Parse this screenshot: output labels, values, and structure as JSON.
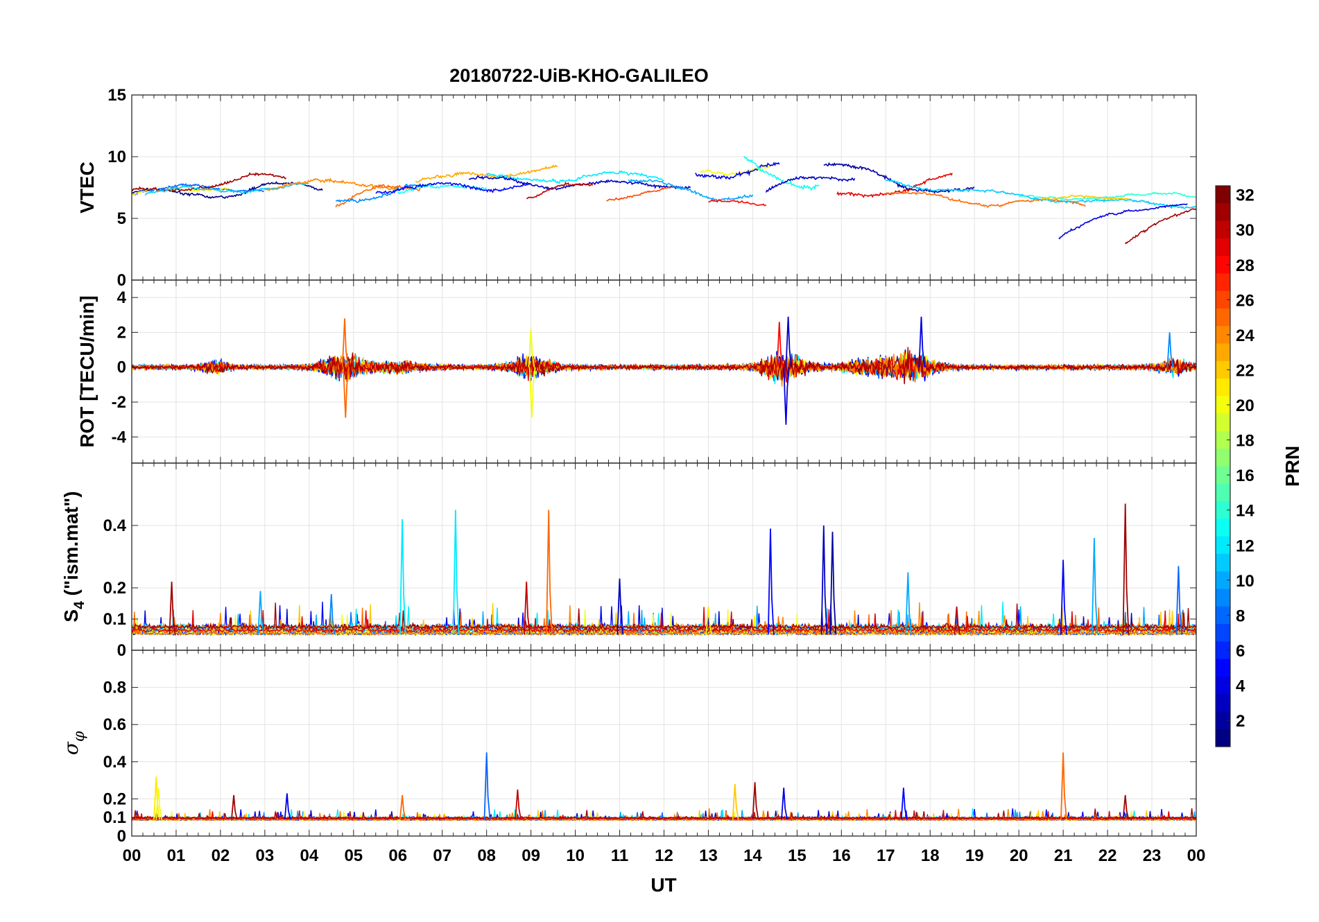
{
  "chart_data": {
    "type": "line",
    "title": "20180722-UiB-KHO-GALILEO",
    "xlabel": "UT",
    "xlim": [
      0,
      24
    ],
    "x_tick_labels": [
      "00",
      "01",
      "02",
      "03",
      "04",
      "05",
      "06",
      "07",
      "08",
      "09",
      "10",
      "11",
      "12",
      "13",
      "14",
      "15",
      "16",
      "17",
      "18",
      "19",
      "20",
      "21",
      "22",
      "23",
      "00"
    ],
    "grid": true,
    "colormap": "jet",
    "colorbar": {
      "label": "PRN",
      "range": [
        1,
        32
      ],
      "ticks": [
        2,
        4,
        6,
        8,
        10,
        12,
        14,
        16,
        18,
        20,
        22,
        24,
        26,
        28,
        30,
        32
      ],
      "placement": "right"
    },
    "panels": [
      {
        "id": "vtec",
        "ylabel": "VTEC",
        "ylim": [
          0,
          15
        ],
        "yticks": [
          0,
          5,
          10,
          15
        ],
        "ytick_labels": [
          "0",
          "5",
          "10",
          "15"
        ],
        "tracks": [
          {
            "prn": 1,
            "t0": 0.0,
            "t1": 4.3,
            "base": 6.8,
            "amp": 0.8,
            "noise": 0.25,
            "trend": 0.6
          },
          {
            "prn": 8,
            "t0": 0.0,
            "t1": 3.0,
            "base": 7.2,
            "amp": 0.5,
            "noise": 0.2,
            "trend": 0.3
          },
          {
            "prn": 21,
            "t0": 0.0,
            "t1": 2.2,
            "base": 6.7,
            "amp": 0.4,
            "noise": 0.15,
            "trend": 0.8
          },
          {
            "prn": 31,
            "t0": 0.0,
            "t1": 3.5,
            "base": 7.0,
            "amp": 0.6,
            "noise": 0.25,
            "trend": 1.2
          },
          {
            "prn": 11,
            "t0": 0.3,
            "t1": 4.0,
            "base": 7.0,
            "amp": 0.5,
            "noise": 0.2,
            "trend": 0.6
          },
          {
            "prn": 24,
            "t0": 3.0,
            "t1": 6.0,
            "base": 7.6,
            "amp": 0.6,
            "noise": 0.3,
            "trend": 0.2
          },
          {
            "prn": 25,
            "t0": 4.6,
            "t1": 6.5,
            "base": 6.2,
            "amp": 0.8,
            "noise": 0.3,
            "trend": 1.2
          },
          {
            "prn": 9,
            "t0": 4.6,
            "t1": 6.6,
            "base": 6.6,
            "amp": 0.7,
            "noise": 0.3,
            "trend": 0.6
          },
          {
            "prn": 13,
            "t0": 6.0,
            "t1": 8.0,
            "base": 6.8,
            "amp": 0.6,
            "noise": 0.3,
            "trend": 1.0
          },
          {
            "prn": 5,
            "t0": 5.5,
            "t1": 9.0,
            "base": 7.3,
            "amp": 0.6,
            "noise": 0.3,
            "trend": 0.5
          },
          {
            "prn": 23,
            "t0": 6.4,
            "t1": 9.6,
            "base": 7.8,
            "amp": 0.7,
            "noise": 0.3,
            "trend": 1.2
          },
          {
            "prn": 12,
            "t0": 8.0,
            "t1": 12.0,
            "base": 8.3,
            "amp": 0.5,
            "noise": 0.25,
            "trend": 0.0
          },
          {
            "prn": 3,
            "t0": 7.6,
            "t1": 12.6,
            "base": 8.0,
            "amp": 0.5,
            "noise": 0.25,
            "trend": -0.3
          },
          {
            "prn": 30,
            "t0": 8.9,
            "t1": 10.4,
            "base": 6.6,
            "amp": 0.5,
            "noise": 0.2,
            "trend": 1.0
          },
          {
            "prn": 26,
            "t0": 10.7,
            "t1": 12.2,
            "base": 6.6,
            "amp": 0.5,
            "noise": 0.2,
            "trend": 0.8
          },
          {
            "prn": 10,
            "t0": 11.2,
            "t1": 14.0,
            "base": 8.0,
            "amp": 0.6,
            "noise": 0.25,
            "trend": -1.2
          },
          {
            "prn": 20,
            "t0": 12.8,
            "t1": 14.4,
            "base": 8.8,
            "amp": 0.6,
            "noise": 0.3,
            "trend": 0.4
          },
          {
            "prn": 4,
            "t0": 12.7,
            "t1": 14.6,
            "base": 8.8,
            "amp": 0.7,
            "noise": 0.35,
            "trend": 0.0
          },
          {
            "prn": 28,
            "t0": 13.0,
            "t1": 14.3,
            "base": 6.3,
            "amp": 0.3,
            "noise": 0.15,
            "trend": 0.1
          },
          {
            "prn": 13,
            "t0": 13.8,
            "t1": 15.5,
            "base": 9.5,
            "amp": 0.9,
            "noise": 0.4,
            "trend": -1.5
          },
          {
            "prn": 3,
            "t0": 14.3,
            "t1": 16.3,
            "base": 7.0,
            "amp": 0.6,
            "noise": 0.3,
            "trend": 1.5
          },
          {
            "prn": 2,
            "t0": 15.6,
            "t1": 19.0,
            "base": 9.4,
            "amp": 0.6,
            "noise": 0.3,
            "trend": -2.0
          },
          {
            "prn": 29,
            "t0": 15.9,
            "t1": 18.5,
            "base": 6.6,
            "amp": 0.8,
            "noise": 0.3,
            "trend": 1.4
          },
          {
            "prn": 25,
            "t0": 17.0,
            "t1": 21.5,
            "base": 7.0,
            "amp": 0.4,
            "noise": 0.2,
            "trend": -0.8
          },
          {
            "prn": 11,
            "t0": 17.0,
            "t1": 24.0,
            "base": 8.0,
            "amp": 0.4,
            "noise": 0.2,
            "trend": -1.8
          },
          {
            "prn": 14,
            "t0": 20.0,
            "t1": 24.0,
            "base": 6.6,
            "amp": 0.3,
            "noise": 0.15,
            "trend": 0.3
          },
          {
            "prn": 22,
            "t0": 20.5,
            "t1": 22.5,
            "base": 6.6,
            "amp": 0.3,
            "noise": 0.15,
            "trend": 0.0
          },
          {
            "prn": 4,
            "t0": 20.9,
            "t1": 23.8,
            "base": 3.4,
            "amp": 0.5,
            "noise": 0.2,
            "trend": 3.0
          },
          {
            "prn": 31,
            "t0": 22.4,
            "t1": 24.0,
            "base": 2.7,
            "amp": 0.5,
            "noise": 0.25,
            "trend": 3.2
          }
        ]
      },
      {
        "id": "rot",
        "ylabel": "ROT [TECU/min]",
        "ylim": [
          -5.5,
          5
        ],
        "yticks": [
          -4,
          -2,
          0,
          2,
          4
        ],
        "ytick_labels": [
          "-4",
          "-2",
          "0",
          "2",
          "4"
        ],
        "activity": [
          {
            "t": 1.9,
            "amp": 1.2,
            "w": 0.3
          },
          {
            "t": 4.8,
            "amp": 2.8,
            "w": 0.5
          },
          {
            "t": 6.0,
            "amp": 1.0,
            "w": 0.6
          },
          {
            "t": 9.0,
            "amp": 2.2,
            "w": 0.5
          },
          {
            "t": 14.7,
            "amp": 3.0,
            "w": 0.5
          },
          {
            "t": 16.8,
            "amp": 1.6,
            "w": 0.8
          },
          {
            "t": 17.6,
            "amp": 2.6,
            "w": 0.5
          },
          {
            "t": 23.5,
            "amp": 1.4,
            "w": 0.4
          }
        ],
        "spikes": [
          {
            "t": 4.8,
            "v": 2.8,
            "prn": 25
          },
          {
            "t": 4.82,
            "v": -2.9,
            "prn": 25
          },
          {
            "t": 9.0,
            "v": 2.2,
            "prn": 20
          },
          {
            "t": 9.02,
            "v": -2.9,
            "prn": 20
          },
          {
            "t": 14.6,
            "v": 2.6,
            "prn": 28
          },
          {
            "t": 14.75,
            "v": -3.3,
            "prn": 4
          },
          {
            "t": 14.8,
            "v": 2.9,
            "prn": 3
          },
          {
            "t": 17.8,
            "v": 2.9,
            "prn": 4
          },
          {
            "t": 23.4,
            "v": 2.0,
            "prn": 9
          }
        ]
      },
      {
        "id": "s4",
        "ylabel": "S4 (\"ism.mat\")",
        "ylim": [
          0,
          0.6
        ],
        "yticks": [
          0,
          0.1,
          0.2,
          0.4
        ],
        "ytick_labels": [
          "0",
          "0.1",
          "0.2",
          "0.4"
        ],
        "spikes": [
          {
            "t": 0.9,
            "v": 0.22,
            "prn": 31
          },
          {
            "t": 2.9,
            "v": 0.19,
            "prn": 10
          },
          {
            "t": 4.5,
            "v": 0.18,
            "prn": 9
          },
          {
            "t": 6.1,
            "v": 0.42,
            "prn": 12
          },
          {
            "t": 7.3,
            "v": 0.45,
            "prn": 12
          },
          {
            "t": 8.9,
            "v": 0.22,
            "prn": 30
          },
          {
            "t": 9.4,
            "v": 0.45,
            "prn": 25
          },
          {
            "t": 11.0,
            "v": 0.23,
            "prn": 3
          },
          {
            "t": 13.0,
            "v": 0.14,
            "prn": 21
          },
          {
            "t": 14.4,
            "v": 0.39,
            "prn": 5
          },
          {
            "t": 15.6,
            "v": 0.4,
            "prn": 3
          },
          {
            "t": 15.8,
            "v": 0.38,
            "prn": 2
          },
          {
            "t": 17.5,
            "v": 0.25,
            "prn": 10
          },
          {
            "t": 18.6,
            "v": 0.14,
            "prn": 30
          },
          {
            "t": 21.0,
            "v": 0.29,
            "prn": 5
          },
          {
            "t": 21.7,
            "v": 0.36,
            "prn": 10
          },
          {
            "t": 22.4,
            "v": 0.47,
            "prn": 31
          },
          {
            "t": 23.6,
            "v": 0.27,
            "prn": 8
          }
        ]
      },
      {
        "id": "sigphi",
        "ylabel": "σφ",
        "ylim": [
          0,
          1
        ],
        "yticks": [
          0,
          0.1,
          0.2,
          0.4,
          0.6,
          0.8
        ],
        "ytick_labels": [
          "0",
          "0.1",
          "0.2",
          "0.4",
          "0.6",
          "0.8"
        ],
        "spikes": [
          {
            "t": 0.55,
            "v": 0.32,
            "prn": 21
          },
          {
            "t": 0.6,
            "v": 0.26,
            "prn": 20
          },
          {
            "t": 2.3,
            "v": 0.22,
            "prn": 31
          },
          {
            "t": 3.5,
            "v": 0.23,
            "prn": 4
          },
          {
            "t": 6.1,
            "v": 0.22,
            "prn": 25
          },
          {
            "t": 8.0,
            "v": 0.45,
            "prn": 8
          },
          {
            "t": 8.7,
            "v": 0.25,
            "prn": 30
          },
          {
            "t": 13.6,
            "v": 0.28,
            "prn": 22
          },
          {
            "t": 14.05,
            "v": 0.29,
            "prn": 31
          },
          {
            "t": 14.7,
            "v": 0.26,
            "prn": 4
          },
          {
            "t": 17.4,
            "v": 0.26,
            "prn": 5
          },
          {
            "t": 21.0,
            "v": 0.45,
            "prn": 25
          },
          {
            "t": 22.4,
            "v": 0.22,
            "prn": 31
          }
        ]
      }
    ]
  }
}
